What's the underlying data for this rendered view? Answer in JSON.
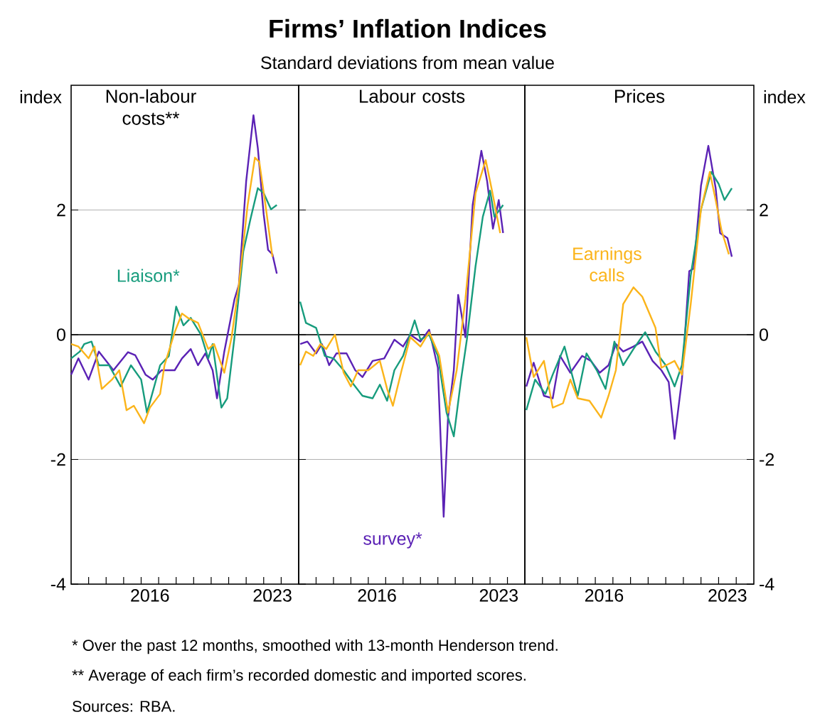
{
  "chart_data": [
    {
      "type": "other",
      "title": "Firms’ Inflation Indices",
      "subtitle": "Standard deviations from mean value",
      "annotations": [
        "*  Over the past 12 months, smoothed with 13-month Henderson trend.",
        "**  Average of each firm’s recorded domestic and imported scores.",
        "Sources: RBA."
      ]
    },
    {
      "type": "line",
      "title": "Non-labour costs**",
      "ylabel": "index",
      "xlim": [
        "2012",
        "2025"
      ],
      "ylim": [
        -4,
        4
      ],
      "yticks": [
        -4,
        -2,
        0,
        2
      ],
      "xticks": [
        {
          "value": "2013",
          "label": null
        },
        {
          "value": "2014",
          "label": null
        },
        {
          "value": "2015",
          "label": null
        },
        {
          "value": "2016",
          "label": null
        },
        {
          "value": "2017",
          "label": null
        },
        {
          "value": "2018",
          "label": null
        },
        {
          "value": "2019",
          "label": null
        },
        {
          "value": "2020",
          "label": null
        },
        {
          "value": "2021",
          "label": null
        },
        {
          "value": "2022",
          "label": null
        },
        {
          "value": "2023",
          "label": null
        },
        {
          "value": "2024",
          "label": null
        },
        {
          "value": "2016-07",
          "label": "2016"
        },
        {
          "value": "2023-07",
          "label": "2023"
        }
      ],
      "grid": "y",
      "ref_lines": [
        {
          "axis": "y",
          "value": 0,
          "color": "#000000"
        }
      ],
      "series": [
        {
          "color": "#5b22b5",
          "x": [
            "2012-01",
            "2012-06",
            "2013-01",
            "2013-08",
            "2014-06",
            "2015-04",
            "2015-09",
            "2016-04",
            "2016-09",
            "2017-03",
            "2017-12",
            "2018-05",
            "2018-11",
            "2019-04",
            "2019-09",
            "2020-02",
            "2020-05",
            "2020-10",
            "2021-05",
            "2021-08",
            "2022-01",
            "2022-06",
            "2022-09",
            "2023-01",
            "2023-04",
            "2023-07",
            "2023-10"
          ],
          "values": [
            -0.64,
            -0.38,
            -0.72,
            -0.27,
            -0.57,
            -0.28,
            -0.33,
            -0.64,
            -0.72,
            -0.57,
            -0.57,
            -0.38,
            -0.23,
            -0.49,
            -0.3,
            -0.57,
            -1.02,
            -0.27,
            0.57,
            0.8,
            2.46,
            3.52,
            2.99,
            1.93,
            1.36,
            1.29,
            0.98
          ]
        },
        {
          "name": "Liaison*",
          "color": "#179c7d",
          "x": [
            "2012-01",
            "2012-07",
            "2012-10",
            "2013-03",
            "2013-08",
            "2014-03",
            "2014-11",
            "2015-06",
            "2016-01",
            "2016-05",
            "2017-02",
            "2017-08",
            "2018-01",
            "2018-06",
            "2018-11",
            "2019-06",
            "2019-11",
            "2020-02",
            "2020-08",
            "2020-12",
            "2021-05",
            "2021-11",
            "2022-04",
            "2022-09",
            "2023-01",
            "2023-06",
            "2023-10"
          ],
          "values": [
            -0.38,
            -0.27,
            -0.15,
            -0.11,
            -0.49,
            -0.49,
            -0.83,
            -0.49,
            -0.72,
            -1.25,
            -0.49,
            -0.34,
            0.45,
            0.15,
            0.27,
            0,
            -0.38,
            -0.15,
            -1.17,
            -1.02,
            -0.04,
            1.33,
            1.86,
            2.35,
            2.27,
            2.01,
            2.08
          ]
        },
        {
          "color": "#fbb41a",
          "x": [
            "2012-01",
            "2012-06",
            "2013-01",
            "2013-05",
            "2013-10",
            "2014-05",
            "2014-10",
            "2015-03",
            "2015-08",
            "2016-03",
            "2016-07",
            "2017-02",
            "2017-05",
            "2017-12",
            "2018-05",
            "2018-09",
            "2019-04",
            "2019-11",
            "2020-03",
            "2020-10",
            "2021-03",
            "2021-08",
            "2022-02",
            "2022-07",
            "2022-10",
            "2023-02",
            "2023-07"
          ],
          "values": [
            -0.15,
            -0.19,
            -0.38,
            -0.19,
            -0.87,
            -0.72,
            -0.57,
            -1.21,
            -1.14,
            -1.42,
            -1.17,
            -0.95,
            -0.49,
            0.04,
            0.34,
            0.27,
            0.19,
            -0.23,
            -0.15,
            -0.61,
            -0.04,
            0.8,
            2.08,
            2.84,
            2.77,
            2.12,
            1.25
          ]
        }
      ]
    },
    {
      "type": "line",
      "title": "Labour costs",
      "tick_labels": "x",
      "xlim": [
        "2012",
        "2025"
      ],
      "ylim": [
        -4,
        4
      ],
      "yticks": [
        -4,
        -2,
        0,
        2
      ],
      "xticks": [
        {
          "value": "2013",
          "label": null
        },
        {
          "value": "2014",
          "label": null
        },
        {
          "value": "2015",
          "label": null
        },
        {
          "value": "2016",
          "label": null
        },
        {
          "value": "2017",
          "label": null
        },
        {
          "value": "2018",
          "label": null
        },
        {
          "value": "2019",
          "label": null
        },
        {
          "value": "2020",
          "label": null
        },
        {
          "value": "2021",
          "label": null
        },
        {
          "value": "2022",
          "label": null
        },
        {
          "value": "2023",
          "label": null
        },
        {
          "value": "2024",
          "label": null
        },
        {
          "value": "2016-07",
          "label": "2016"
        },
        {
          "value": "2023-07",
          "label": "2023"
        }
      ],
      "grid": "y",
      "ref_lines": [
        {
          "axis": "y",
          "value": 0,
          "color": "#000000"
        }
      ],
      "series": [
        {
          "name": "survey*",
          "color": "#5b22b5",
          "x": [
            "2012-02",
            "2012-07",
            "2013-01",
            "2013-05",
            "2013-10",
            "2014-03",
            "2014-10",
            "2015-04",
            "2015-09",
            "2016-04",
            "2016-12",
            "2017-07",
            "2018-01",
            "2018-06",
            "2019-01",
            "2019-07",
            "2020-01",
            "2020-05",
            "2020-08",
            "2020-12",
            "2021-03",
            "2021-08",
            "2022-01",
            "2022-07",
            "2022-11",
            "2023-03",
            "2023-07",
            "2023-10"
          ],
          "values": [
            -0.15,
            -0.11,
            -0.3,
            -0.15,
            -0.49,
            -0.3,
            -0.3,
            -0.57,
            -0.68,
            -0.42,
            -0.38,
            -0.08,
            -0.19,
            0,
            -0.11,
            0.08,
            -0.53,
            -2.92,
            -1.33,
            -0.57,
            0.64,
            -0.04,
            2.08,
            2.95,
            2.46,
            1.7,
            2.16,
            1.63
          ]
        },
        {
          "color": "#179c7d",
          "x": [
            "2012-02",
            "2012-06",
            "2013-01",
            "2013-07",
            "2014-01",
            "2014-08",
            "2015-03",
            "2015-09",
            "2016-04",
            "2016-09",
            "2017-02",
            "2017-07",
            "2018-01",
            "2018-09",
            "2019-01",
            "2019-07",
            "2020-01",
            "2020-07",
            "2020-12",
            "2021-05",
            "2021-09",
            "2022-03",
            "2022-08",
            "2023-01",
            "2023-04",
            "2023-10"
          ],
          "values": [
            0.53,
            0.19,
            0.11,
            -0.34,
            -0.38,
            -0.57,
            -0.8,
            -0.98,
            -1.02,
            -0.8,
            -1.06,
            -0.57,
            -0.34,
            0.23,
            -0.08,
            0,
            -0.34,
            -1.25,
            -1.63,
            -0.72,
            -0.08,
            1.1,
            1.89,
            2.31,
            1.89,
            2.08
          ]
        },
        {
          "color": "#fbb41a",
          "x": [
            "2012-02",
            "2012-06",
            "2012-11",
            "2013-04",
            "2013-08",
            "2014-02",
            "2014-08",
            "2015-01",
            "2015-06",
            "2016-01",
            "2016-09",
            "2017-02",
            "2017-06",
            "2017-12",
            "2018-06",
            "2019-01",
            "2019-07",
            "2020-02",
            "2020-08",
            "2021-02",
            "2021-08",
            "2022-03",
            "2022-10",
            "2023-02",
            "2023-08"
          ],
          "values": [
            -0.49,
            -0.27,
            -0.34,
            -0.15,
            -0.23,
            0,
            -0.61,
            -0.83,
            -0.57,
            -0.57,
            -0.42,
            -0.87,
            -1.14,
            -0.57,
            -0.04,
            -0.19,
            0.04,
            -0.34,
            -1.25,
            -0.57,
            0.57,
            2.27,
            2.8,
            2.35,
            1.63
          ]
        }
      ]
    },
    {
      "type": "line",
      "title": "Prices",
      "ylabel": "index",
      "xlim": [
        "2012",
        "2025"
      ],
      "ylim": [
        -4,
        4
      ],
      "yticks": [
        -4,
        -2,
        0,
        2
      ],
      "xticks": [
        {
          "value": "2013",
          "label": null
        },
        {
          "value": "2014",
          "label": null
        },
        {
          "value": "2015",
          "label": null
        },
        {
          "value": "2016",
          "label": null
        },
        {
          "value": "2017",
          "label": null
        },
        {
          "value": "2018",
          "label": null
        },
        {
          "value": "2019",
          "label": null
        },
        {
          "value": "2020",
          "label": null
        },
        {
          "value": "2021",
          "label": null
        },
        {
          "value": "2022",
          "label": null
        },
        {
          "value": "2023",
          "label": null
        },
        {
          "value": "2024",
          "label": null
        },
        {
          "value": "2016-07",
          "label": "2016"
        },
        {
          "value": "2023-07",
          "label": "2023"
        }
      ],
      "grid": "y",
      "ref_lines": [
        {
          "axis": "y",
          "value": 0,
          "color": "#000000"
        }
      ],
      "series": [
        {
          "color": "#5b22b5",
          "x": [
            "2012-02",
            "2012-07",
            "2013-02",
            "2013-08",
            "2014-01",
            "2014-08",
            "2015-04",
            "2015-10",
            "2016-04",
            "2016-10",
            "2017-03",
            "2017-08",
            "2018-03",
            "2018-09",
            "2019-04",
            "2019-10",
            "2020-03",
            "2020-07",
            "2020-12",
            "2021-05",
            "2021-08",
            "2022-01",
            "2022-06",
            "2022-11",
            "2023-02",
            "2023-07",
            "2023-10"
          ],
          "values": [
            -0.83,
            -0.45,
            -0.98,
            -1.02,
            -0.34,
            -0.61,
            -0.34,
            -0.42,
            -0.61,
            -0.49,
            -0.15,
            -0.27,
            -0.19,
            -0.11,
            -0.42,
            -0.57,
            -0.76,
            -1.67,
            -0.72,
            1.02,
            1.06,
            2.39,
            3.03,
            2.35,
            1.63,
            1.55,
            1.25
          ]
        },
        {
          "color": "#179c7d",
          "x": [
            "2012-02",
            "2012-08",
            "2013-03",
            "2013-08",
            "2014-04",
            "2015-01",
            "2015-07",
            "2016-02",
            "2016-08",
            "2017-02",
            "2017-08",
            "2018-03",
            "2018-11",
            "2019-06",
            "2020-01",
            "2020-07",
            "2020-12",
            "2021-06",
            "2022-01",
            "2022-08",
            "2023-01",
            "2023-05",
            "2023-10"
          ],
          "values": [
            -1.21,
            -0.72,
            -0.95,
            -0.64,
            -0.19,
            -0.98,
            -0.3,
            -0.57,
            -0.87,
            -0.11,
            -0.49,
            -0.23,
            0.04,
            -0.27,
            -0.49,
            -0.83,
            -0.49,
            0.95,
            2.01,
            2.61,
            2.42,
            2.16,
            2.35
          ]
        },
        {
          "name": "Earnings calls",
          "color": "#fbb41a",
          "x": [
            "2012-02",
            "2012-07",
            "2013-02",
            "2013-08",
            "2014-03",
            "2014-08",
            "2015-01",
            "2015-09",
            "2016-05",
            "2016-10",
            "2017-03",
            "2017-08",
            "2018-03",
            "2018-09",
            "2019-06",
            "2019-10",
            "2020-07",
            "2020-12",
            "2021-06",
            "2022-01",
            "2022-07",
            "2022-11",
            "2023-03",
            "2023-08"
          ],
          "values": [
            -0.04,
            -0.68,
            -0.42,
            -1.17,
            -1.1,
            -0.72,
            -1.02,
            -1.06,
            -1.33,
            -0.98,
            -0.57,
            0.49,
            0.76,
            0.61,
            0.11,
            -0.53,
            -0.42,
            -0.64,
            0.49,
            2.01,
            2.61,
            2.16,
            1.67,
            1.29
          ]
        }
      ]
    }
  ]
}
